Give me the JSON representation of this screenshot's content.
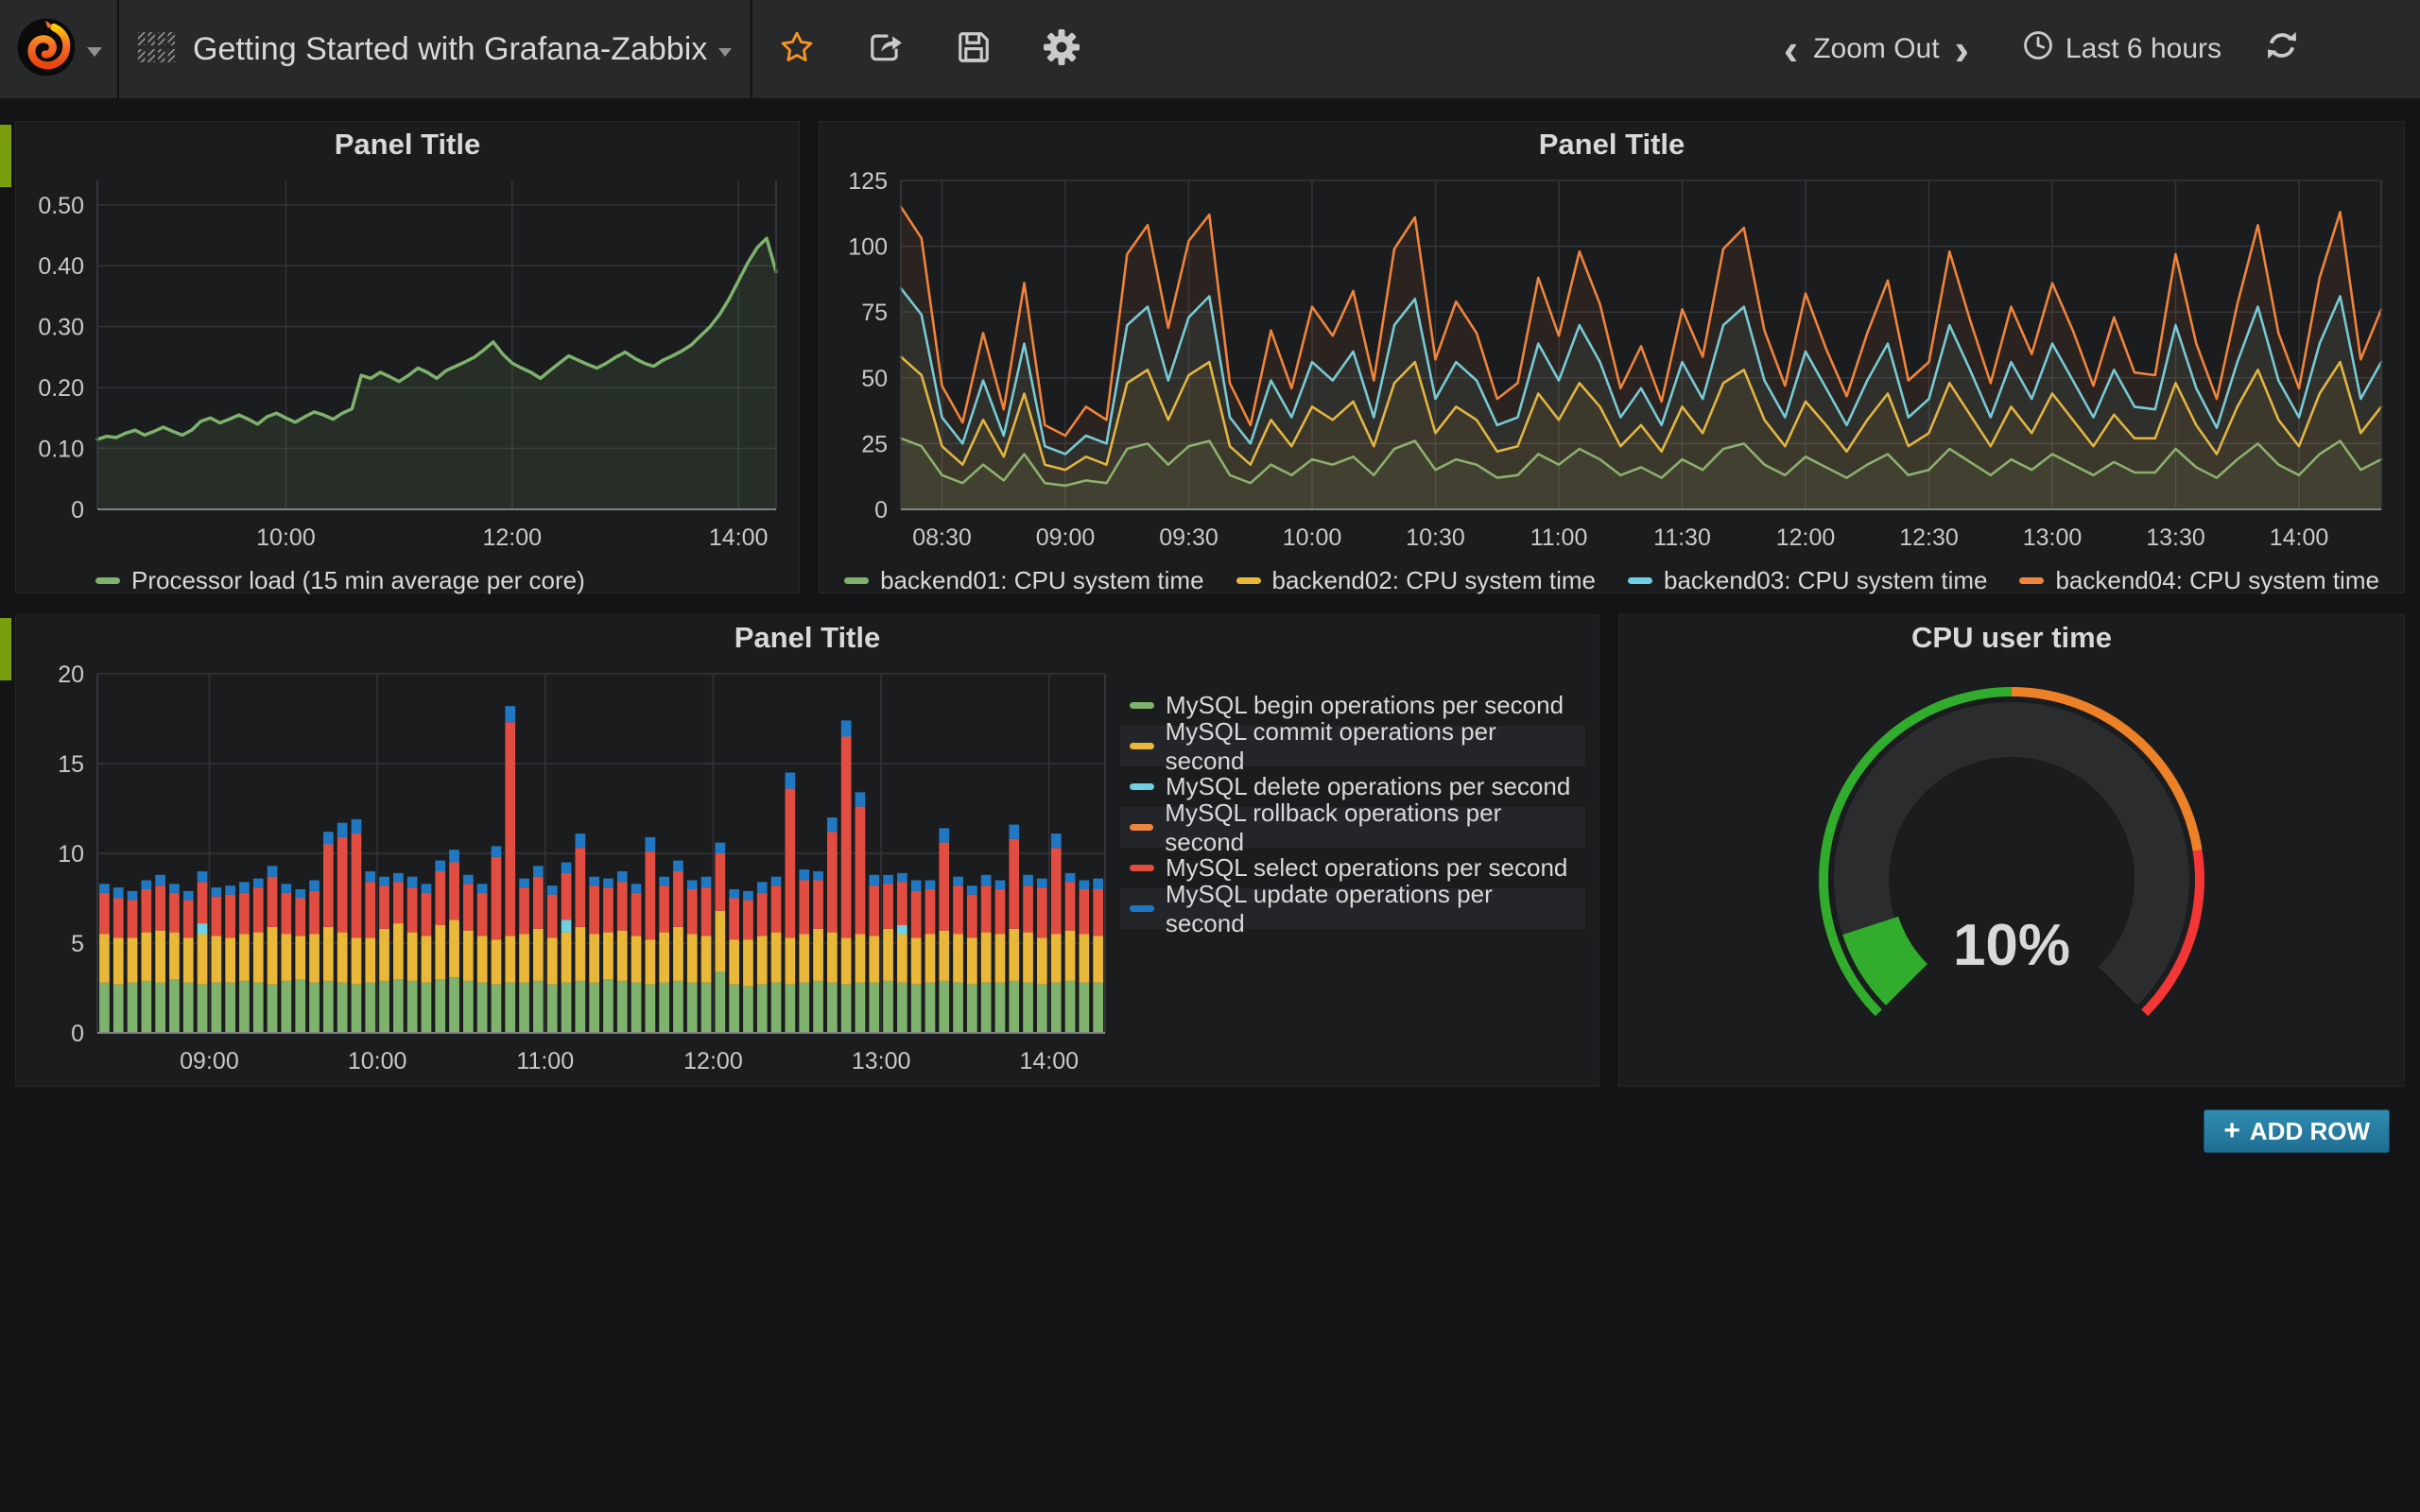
{
  "navbar": {
    "title": "Getting Started with Grafana-Zabbix",
    "zoom_out_label": "Zoom Out",
    "back_glyph": "‹",
    "forward_glyph": "›",
    "time_range_label": "Last 6 hours"
  },
  "add_row": {
    "plus": "+",
    "label": "ADD ROW"
  },
  "panels": {
    "p1": {
      "title": "Panel Title"
    },
    "p2": {
      "title": "Panel Title"
    },
    "p3": {
      "title": "Panel Title"
    },
    "gauge": {
      "title": "CPU user time"
    }
  },
  "colors": {
    "green": "#7EB26D",
    "yellow": "#EAB839",
    "cyan": "#6ED0E0",
    "orange": "#EF843C",
    "red": "#E24D42",
    "blue": "#1F78C1",
    "star": "#F79520",
    "row_handle": "#7a9e0e",
    "gauge_green": "#32AC2D",
    "gauge_orange": "#ED8128",
    "gauge_red": "#F53636"
  },
  "chart_data": [
    {
      "type": "line",
      "title": "Panel Title",
      "line_width": 3.5,
      "fill_opacity": 0.12,
      "xrange": [
        0,
        360
      ],
      "xticks": [
        {
          "v": 100,
          "l": "10:00"
        },
        {
          "v": 220,
          "l": "12:00"
        },
        {
          "v": 340,
          "l": "14:00"
        }
      ],
      "ylim": [
        0,
        0.54
      ],
      "yticks": [
        {
          "v": 0,
          "l": "0"
        },
        {
          "v": 0.1,
          "l": "0.10"
        },
        {
          "v": 0.2,
          "l": "0.20"
        },
        {
          "v": 0.3,
          "l": "0.30"
        },
        {
          "v": 0.4,
          "l": "0.40"
        },
        {
          "v": 0.5,
          "l": "0.50"
        }
      ],
      "legend_position": "bottom",
      "series": [
        {
          "name": "Processor load (15 min average per core)",
          "color": "#7EB26D",
          "values": [
            0.115,
            0.12,
            0.118,
            0.125,
            0.13,
            0.122,
            0.128,
            0.135,
            0.128,
            0.122,
            0.13,
            0.145,
            0.15,
            0.142,
            0.148,
            0.155,
            0.148,
            0.14,
            0.152,
            0.158,
            0.15,
            0.143,
            0.152,
            0.16,
            0.155,
            0.148,
            0.158,
            0.165,
            0.22,
            0.215,
            0.225,
            0.218,
            0.21,
            0.22,
            0.232,
            0.225,
            0.215,
            0.228,
            0.235,
            0.242,
            0.25,
            0.262,
            0.275,
            0.255,
            0.24,
            0.232,
            0.225,
            0.215,
            0.228,
            0.24,
            0.252,
            0.245,
            0.238,
            0.232,
            0.24,
            0.25,
            0.258,
            0.248,
            0.24,
            0.235,
            0.245,
            0.252,
            0.26,
            0.27,
            0.285,
            0.3,
            0.32,
            0.345,
            0.375,
            0.405,
            0.43,
            0.445,
            0.39
          ]
        }
      ]
    },
    {
      "type": "line",
      "title": "Panel Title",
      "line_width": 2.6,
      "fill_opacity": 0.07,
      "xrange": [
        0,
        360
      ],
      "xticks": [
        {
          "v": 10,
          "l": "08:30"
        },
        {
          "v": 40,
          "l": "09:00"
        },
        {
          "v": 70,
          "l": "09:30"
        },
        {
          "v": 100,
          "l": "10:00"
        },
        {
          "v": 130,
          "l": "10:30"
        },
        {
          "v": 160,
          "l": "11:00"
        },
        {
          "v": 190,
          "l": "11:30"
        },
        {
          "v": 220,
          "l": "12:00"
        },
        {
          "v": 250,
          "l": "12:30"
        },
        {
          "v": 280,
          "l": "13:00"
        },
        {
          "v": 310,
          "l": "13:30"
        },
        {
          "v": 340,
          "l": "14:00"
        }
      ],
      "ylim": [
        0,
        125
      ],
      "yticks": [
        {
          "v": 0,
          "l": "0"
        },
        {
          "v": 25,
          "l": "25"
        },
        {
          "v": 50,
          "l": "50"
        },
        {
          "v": 75,
          "l": "75"
        },
        {
          "v": 100,
          "l": "100"
        },
        {
          "v": 125,
          "l": "125"
        }
      ],
      "legend_position": "bottom",
      "series": [
        {
          "name": "backend01: CPU system time",
          "color": "#7EB26D",
          "values": [
            27,
            24,
            13,
            10,
            17,
            11,
            21,
            10,
            9,
            11,
            10,
            23,
            25,
            17,
            24,
            26,
            13,
            10,
            17,
            13,
            19,
            17,
            20,
            13,
            23,
            26,
            15,
            19,
            17,
            12,
            13,
            21,
            17,
            23,
            19,
            13,
            16,
            12,
            19,
            15,
            23,
            25,
            17,
            13,
            20,
            16,
            12,
            17,
            21,
            13,
            15,
            23,
            18,
            13,
            19,
            15,
            21,
            17,
            13,
            18,
            14,
            14,
            23,
            16,
            12,
            19,
            25,
            17,
            13,
            21,
            26,
            15,
            19
          ]
        },
        {
          "name": "backend02: CPU system time",
          "color": "#EAB839",
          "values": [
            58,
            51,
            24,
            17,
            34,
            20,
            44,
            17,
            15,
            20,
            17,
            48,
            53,
            34,
            51,
            56,
            24,
            17,
            34,
            24,
            39,
            34,
            41,
            24,
            48,
            56,
            29,
            39,
            34,
            22,
            24,
            44,
            34,
            48,
            39,
            24,
            32,
            22,
            39,
            29,
            48,
            53,
            34,
            24,
            41,
            32,
            22,
            34,
            44,
            24,
            29,
            48,
            36,
            24,
            39,
            29,
            44,
            34,
            24,
            36,
            27,
            27,
            48,
            32,
            21,
            39,
            53,
            34,
            24,
            44,
            56,
            29,
            39
          ]
        },
        {
          "name": "backend03: CPU system time",
          "color": "#6ED0E0",
          "values": [
            84,
            74,
            35,
            25,
            49,
            28,
            63,
            24,
            21,
            28,
            25,
            70,
            77,
            49,
            73,
            81,
            35,
            25,
            49,
            35,
            56,
            49,
            60,
            35,
            70,
            80,
            42,
            56,
            49,
            32,
            35,
            63,
            49,
            70,
            56,
            35,
            46,
            32,
            56,
            42,
            70,
            77,
            49,
            35,
            60,
            46,
            32,
            49,
            63,
            35,
            42,
            70,
            53,
            35,
            56,
            42,
            63,
            49,
            35,
            53,
            39,
            38,
            70,
            46,
            31,
            56,
            77,
            49,
            35,
            63,
            81,
            42,
            56
          ]
        },
        {
          "name": "backend04: CPU system time",
          "color": "#EF843C",
          "values": [
            115,
            103,
            47,
            33,
            67,
            38,
            86,
            32,
            28,
            39,
            34,
            97,
            108,
            69,
            102,
            112,
            48,
            32,
            68,
            46,
            77,
            66,
            83,
            49,
            99,
            111,
            57,
            79,
            67,
            42,
            48,
            88,
            66,
            98,
            78,
            46,
            62,
            41,
            76,
            58,
            99,
            107,
            68,
            47,
            82,
            61,
            43,
            67,
            87,
            49,
            56,
            98,
            72,
            48,
            77,
            59,
            86,
            68,
            47,
            73,
            52,
            51,
            97,
            63,
            42,
            78,
            108,
            67,
            46,
            88,
            113,
            57,
            76
          ]
        }
      ]
    },
    {
      "type": "bars",
      "title": "Panel Title",
      "stacked": true,
      "bar_start": 2.5,
      "bar_step": 5,
      "xrange": [
        0,
        360
      ],
      "xticks": [
        {
          "v": 40,
          "l": "09:00"
        },
        {
          "v": 100,
          "l": "10:00"
        },
        {
          "v": 160,
          "l": "11:00"
        },
        {
          "v": 220,
          "l": "12:00"
        },
        {
          "v": 280,
          "l": "13:00"
        },
        {
          "v": 340,
          "l": "14:00"
        }
      ],
      "ylim": [
        0,
        20
      ],
      "yticks": [
        {
          "v": 0,
          "l": "0"
        },
        {
          "v": 5,
          "l": "5"
        },
        {
          "v": 10,
          "l": "10"
        },
        {
          "v": 15,
          "l": "15"
        },
        {
          "v": 20,
          "l": "20"
        }
      ],
      "legend_position": "right",
      "series": [
        {
          "name": "MySQL begin operations per second",
          "color": "#7EB26D",
          "values": [
            2.8,
            2.7,
            2.8,
            2.9,
            2.8,
            3.0,
            2.8,
            2.7,
            2.8,
            2.8,
            2.9,
            2.8,
            2.7,
            2.9,
            3.0,
            2.8,
            2.9,
            2.8,
            2.7,
            2.8,
            2.9,
            3.0,
            2.9,
            2.8,
            3.0,
            3.1,
            2.9,
            2.8,
            2.7,
            2.8,
            2.8,
            2.9,
            2.7,
            2.8,
            2.9,
            2.8,
            3.0,
            2.9,
            2.8,
            2.7,
            2.8,
            2.9,
            2.8,
            2.8,
            3.4,
            2.7,
            2.6,
            2.7,
            2.8,
            2.7,
            2.8,
            2.9,
            2.8,
            2.7,
            2.8,
            2.8,
            2.9,
            2.8,
            2.7,
            2.8,
            2.9,
            2.8,
            2.7,
            2.8,
            2.8,
            2.9,
            2.8,
            2.7,
            2.8,
            2.9,
            2.8,
            2.8
          ]
        },
        {
          "name": "MySQL commit operations per second",
          "color": "#EAB839",
          "values": [
            2.7,
            2.6,
            2.5,
            2.7,
            2.9,
            2.6,
            2.5,
            2.8,
            2.6,
            2.5,
            2.6,
            2.8,
            3.2,
            2.6,
            2.4,
            2.7,
            3.0,
            2.8,
            2.6,
            2.5,
            2.9,
            3.1,
            2.7,
            2.6,
            3.0,
            3.2,
            2.8,
            2.6,
            2.5,
            2.6,
            2.7,
            2.9,
            2.6,
            2.8,
            3.0,
            2.7,
            2.6,
            2.8,
            2.6,
            2.5,
            2.8,
            3.0,
            2.7,
            2.6,
            3.4,
            2.5,
            2.6,
            2.7,
            2.8,
            2.6,
            2.7,
            2.9,
            2.8,
            2.6,
            2.7,
            2.6,
            2.9,
            2.7,
            2.6,
            2.7,
            2.8,
            2.7,
            2.6,
            2.8,
            2.7,
            2.9,
            2.8,
            2.6,
            2.7,
            2.8,
            2.7,
            2.6
          ]
        },
        {
          "name": "MySQL delete operations per second",
          "color": "#6ED0E0",
          "values": [
            0,
            0,
            0,
            0,
            0,
            0,
            0,
            0.6,
            0,
            0,
            0,
            0,
            0,
            0,
            0,
            0,
            0,
            0,
            0,
            0,
            0,
            0,
            0,
            0,
            0,
            0,
            0,
            0,
            0,
            0,
            0,
            0,
            0,
            0.7,
            0,
            0,
            0,
            0,
            0,
            0,
            0,
            0,
            0,
            0,
            0,
            0,
            0,
            0,
            0,
            0,
            0,
            0,
            0,
            0,
            0,
            0,
            0,
            0.5,
            0,
            0,
            0,
            0,
            0,
            0,
            0,
            0,
            0,
            0,
            0,
            0,
            0,
            0
          ]
        },
        {
          "name": "MySQL rollback operations per second",
          "color": "#EF843C",
          "values": [
            0,
            0,
            0,
            0,
            0,
            0,
            0,
            0,
            0,
            0,
            0,
            0,
            0,
            0,
            0,
            0,
            0,
            0,
            0,
            0,
            0,
            0,
            0,
            0,
            0,
            0,
            0,
            0,
            0,
            0,
            0,
            0,
            0,
            0,
            0,
            0,
            0,
            0,
            0,
            0,
            0,
            0,
            0,
            0,
            0,
            0,
            0,
            0,
            0,
            0,
            0,
            0,
            0,
            0,
            0,
            0,
            0,
            0,
            0,
            0,
            0,
            0,
            0,
            0,
            0,
            0,
            0,
            0,
            0,
            0,
            0,
            0
          ]
        },
        {
          "name": "MySQL select operations per second",
          "color": "#E24D42",
          "values": [
            2.3,
            2.2,
            2.1,
            2.4,
            2.5,
            2.2,
            2.1,
            2.3,
            2.2,
            2.4,
            2.3,
            2.5,
            2.8,
            2.3,
            2.1,
            2.4,
            4.6,
            5.3,
            5.8,
            3.1,
            2.4,
            2.3,
            2.5,
            2.4,
            3.0,
            3.2,
            2.6,
            2.4,
            4.6,
            11.9,
            2.6,
            2.9,
            2.4,
            2.6,
            4.4,
            2.7,
            2.5,
            2.7,
            2.4,
            4.9,
            2.6,
            3.1,
            2.5,
            2.7,
            3.2,
            2.3,
            2.2,
            2.4,
            2.6,
            8.3,
            3.0,
            2.7,
            5.6,
            11.2,
            7.1,
            2.8,
            2.5,
            2.4,
            2.6,
            2.5,
            4.9,
            2.7,
            2.4,
            2.6,
            2.5,
            5.0,
            2.6,
            2.8,
            4.8,
            2.7,
            2.5,
            2.6
          ]
        },
        {
          "name": "MySQL update operations per second",
          "color": "#1F78C1",
          "values": [
            0.5,
            0.6,
            0.5,
            0.5,
            0.6,
            0.5,
            0.5,
            0.6,
            0.5,
            0.5,
            0.6,
            0.5,
            0.6,
            0.5,
            0.5,
            0.6,
            0.7,
            0.8,
            0.8,
            0.6,
            0.5,
            0.5,
            0.6,
            0.5,
            0.6,
            0.7,
            0.5,
            0.5,
            0.6,
            0.9,
            0.5,
            0.6,
            0.5,
            0.6,
            0.8,
            0.5,
            0.5,
            0.6,
            0.5,
            0.8,
            0.5,
            0.6,
            0.5,
            0.6,
            0.6,
            0.5,
            0.5,
            0.6,
            0.5,
            0.9,
            0.6,
            0.5,
            0.8,
            0.9,
            0.8,
            0.6,
            0.5,
            0.5,
            0.6,
            0.5,
            0.8,
            0.5,
            0.5,
            0.6,
            0.5,
            0.8,
            0.6,
            0.5,
            0.8,
            0.5,
            0.5,
            0.6
          ]
        }
      ]
    },
    {
      "type": "gauge",
      "title": "CPU user time",
      "value": 10,
      "display": "10%",
      "min": 0,
      "max": 100,
      "arc": {
        "start": 225,
        "end": -45
      },
      "thresholds": [
        {
          "pct": 50,
          "color": "#32AC2D"
        },
        {
          "pct": 80,
          "color": "#ED8128"
        },
        {
          "pct": 100,
          "color": "#F53636"
        }
      ]
    }
  ]
}
